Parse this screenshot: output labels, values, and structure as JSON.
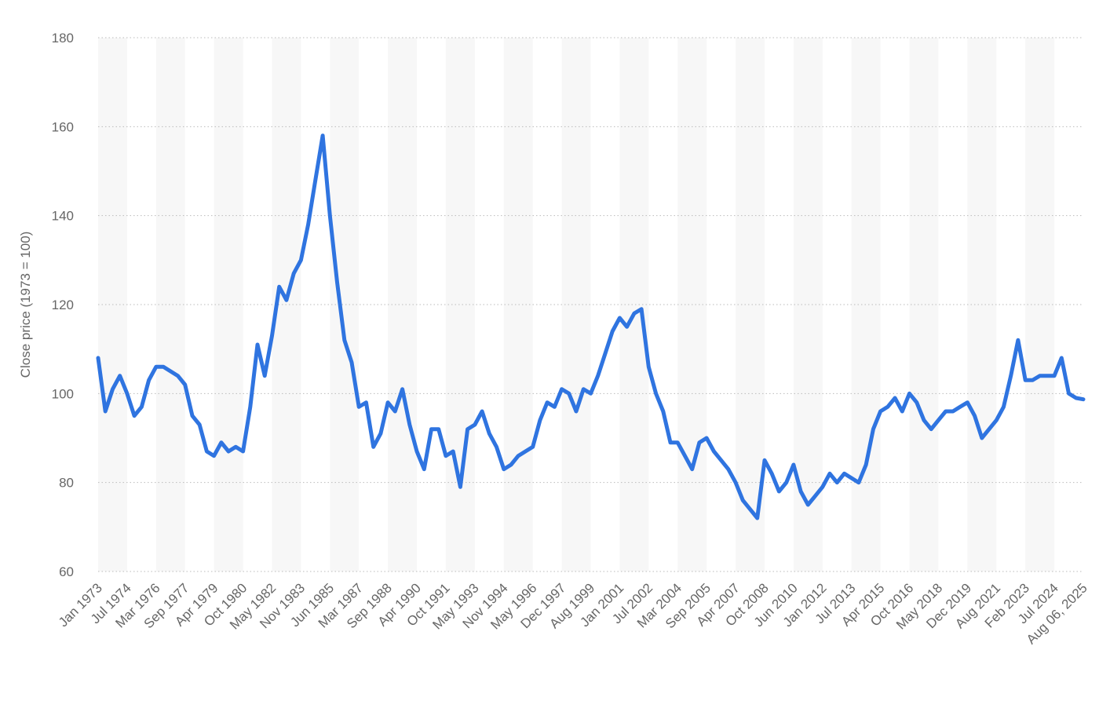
{
  "chart_data": {
    "type": "line",
    "y_label": "Close price (1973 = 100)",
    "categories": [
      "Jan 1973",
      null,
      null,
      null,
      "Jul 1974",
      null,
      null,
      null,
      "Mar 1976",
      null,
      null,
      null,
      "Sep 1977",
      null,
      null,
      null,
      "Apr 1979",
      null,
      null,
      null,
      "Oct 1980",
      null,
      null,
      null,
      "May 1982",
      null,
      null,
      null,
      "Nov 1983",
      null,
      null,
      null,
      "Jun 1985",
      null,
      null,
      null,
      "Mar 1987",
      null,
      null,
      null,
      "Sep 1988",
      null,
      null,
      null,
      "Apr 1990",
      null,
      null,
      null,
      "Oct 1991",
      null,
      null,
      null,
      "May 1993",
      null,
      null,
      null,
      "Nov 1994",
      null,
      null,
      null,
      "May 1996",
      null,
      null,
      null,
      "Dec 1997",
      null,
      null,
      null,
      "Aug 1999",
      null,
      null,
      null,
      "Jan 2001",
      null,
      null,
      null,
      "Jul 2002",
      null,
      null,
      null,
      "Mar 2004",
      null,
      null,
      null,
      "Sep 2005",
      null,
      null,
      null,
      "Apr 2007",
      null,
      null,
      null,
      "Oct 2008",
      null,
      null,
      null,
      "Jun 2010",
      null,
      null,
      null,
      "Jan 2012",
      null,
      null,
      null,
      "Jul 2013",
      null,
      null,
      null,
      "Apr 2015",
      null,
      null,
      null,
      "Oct 2016",
      null,
      null,
      null,
      "May 2018",
      null,
      null,
      null,
      "Dec 2019",
      null,
      null,
      null,
      "Aug 2021",
      null,
      null,
      null,
      "Feb 2023",
      null,
      null,
      null,
      "Jul 2024",
      null,
      null,
      null,
      "Aug 06, 2025"
    ],
    "values": [
      108,
      96,
      101,
      104,
      100,
      95,
      97,
      103,
      106,
      106,
      105,
      104,
      102,
      95,
      93,
      87,
      86,
      89,
      87,
      88,
      87,
      97,
      111,
      104,
      113,
      124,
      121,
      127,
      130,
      138,
      148,
      158,
      140,
      125,
      112,
      107,
      97,
      98,
      88,
      91,
      98,
      96,
      101,
      93,
      87,
      83,
      92,
      92,
      86,
      87,
      79,
      92,
      93,
      96,
      91,
      88,
      83,
      84,
      86,
      87,
      88,
      94,
      98,
      97,
      101,
      100,
      96,
      101,
      100,
      104,
      109,
      114,
      117,
      115,
      118,
      119,
      106,
      100,
      96,
      89,
      89,
      86,
      83,
      89,
      90,
      87,
      85,
      83,
      80,
      76,
      74,
      72,
      85,
      82,
      78,
      80,
      84,
      78,
      75,
      77,
      79,
      82,
      80,
      82,
      81,
      80,
      84,
      92,
      96,
      97,
      99,
      96,
      100,
      98,
      94,
      92,
      94,
      96,
      96,
      97,
      98,
      95,
      90,
      92,
      94,
      97,
      104,
      112,
      103,
      103,
      104,
      104,
      104,
      108,
      100,
      99,
      98.7
    ],
    "color": "#2f74e0",
    "ylim": [
      60,
      180
    ],
    "yticks": [
      60,
      80,
      100,
      120,
      140,
      160,
      180
    ],
    "grid": true
  }
}
